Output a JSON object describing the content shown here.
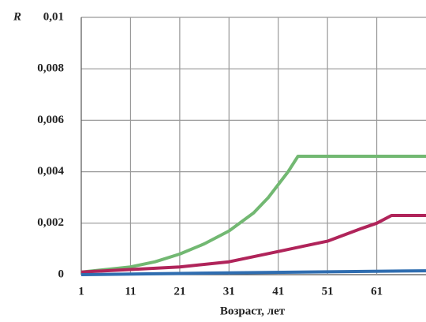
{
  "chart_data": {
    "type": "line",
    "ylabel": "R",
    "xlabel": "Возраст, лет",
    "xlim": [
      1,
      71
    ],
    "xticks": [
      1,
      11,
      21,
      31,
      41,
      51,
      61
    ],
    "ylim": [
      0,
      0.01
    ],
    "yticks": [
      0,
      {
        "value": 0.002,
        "label": "0,002"
      },
      {
        "value": 0.004,
        "label": "0,004"
      },
      {
        "value": 0.006,
        "label": "0,006"
      },
      {
        "value": 0.008,
        "label": "0,008"
      },
      {
        "value": 0.01,
        "label": "0,01"
      }
    ],
    "grid": true,
    "series": [
      {
        "color": "#72b872",
        "x": [
          1,
          11,
          16,
          21,
          26,
          31,
          36,
          39,
          41,
          43,
          45,
          71
        ],
        "values": [
          0.0001,
          0.0003,
          0.0005,
          0.0008,
          0.0012,
          0.0017,
          0.0024,
          0.003,
          0.0035,
          0.004,
          0.0046,
          0.0046
        ]
      },
      {
        "color": "#b0245a",
        "x": [
          1,
          11,
          21,
          31,
          36,
          41,
          46,
          51,
          58,
          61,
          64,
          71
        ],
        "values": [
          0.0001,
          0.0002,
          0.0003,
          0.0005,
          0.0007,
          0.0009,
          0.0011,
          0.0013,
          0.0018,
          0.002,
          0.0023,
          0.0023
        ]
      },
      {
        "color": "#2f6db0",
        "x": [
          1,
          31,
          71
        ],
        "values": [
          0,
          7e-05,
          0.00015
        ]
      }
    ]
  }
}
